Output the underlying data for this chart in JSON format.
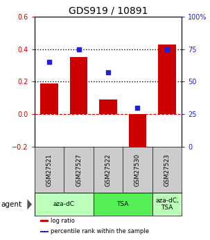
{
  "title": "GDS919 / 10891",
  "samples": [
    "GSM27521",
    "GSM27527",
    "GSM27522",
    "GSM27530",
    "GSM27523"
  ],
  "log_ratio": [
    0.19,
    0.35,
    0.09,
    -0.22,
    0.43
  ],
  "percentile_rank": [
    65,
    75,
    57,
    30,
    75
  ],
  "bar_color": "#cc0000",
  "dot_color": "#2222cc",
  "ylim_left": [
    -0.2,
    0.6
  ],
  "ylim_right": [
    0,
    100
  ],
  "yticks_left": [
    -0.2,
    0.0,
    0.2,
    0.4,
    0.6
  ],
  "yticks_right": [
    0,
    25,
    50,
    75,
    100
  ],
  "agent_groups": [
    {
      "label": "aza-dC",
      "start": 0,
      "end": 1,
      "color": "#bbffbb"
    },
    {
      "label": "TSA",
      "start": 2,
      "end": 3,
      "color": "#55ee55"
    },
    {
      "label": "aza-dC,\nTSA",
      "start": 4,
      "end": 4,
      "color": "#bbffbb"
    }
  ],
  "agent_label": "agent",
  "legend_items": [
    {
      "color": "#cc0000",
      "label": "log ratio"
    },
    {
      "color": "#2222cc",
      "label": "percentile rank within the sample"
    }
  ],
  "background_color": "#ffffff",
  "sample_box_color": "#cccccc",
  "title_fontsize": 10,
  "tick_fontsize": 7,
  "label_fontsize": 7.5
}
